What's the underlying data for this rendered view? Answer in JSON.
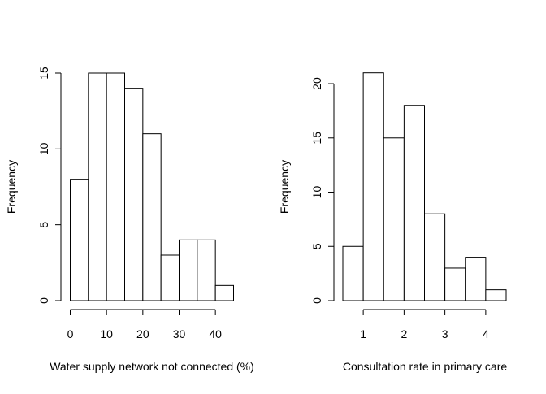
{
  "chart_data": [
    {
      "type": "bar",
      "subtype": "histogram",
      "title": "",
      "xlabel": "Water supply network not connected (%)",
      "ylabel": "Frequency",
      "bins": [
        {
          "start": 0,
          "end": 5,
          "count": 8
        },
        {
          "start": 5,
          "end": 10,
          "count": 15
        },
        {
          "start": 10,
          "end": 15,
          "count": 15
        },
        {
          "start": 15,
          "end": 20,
          "count": 14
        },
        {
          "start": 20,
          "end": 25,
          "count": 11
        },
        {
          "start": 25,
          "end": 30,
          "count": 3
        },
        {
          "start": 30,
          "end": 35,
          "count": 4
        },
        {
          "start": 35,
          "end": 40,
          "count": 4
        },
        {
          "start": 40,
          "end": 45,
          "count": 1
        }
      ],
      "xlim": [
        0,
        45
      ],
      "ylim": [
        0,
        15
      ],
      "xticks": [
        0,
        10,
        20,
        30,
        40
      ],
      "yticks": [
        0,
        5,
        10,
        15
      ],
      "grid": false,
      "legend": "none"
    },
    {
      "type": "bar",
      "subtype": "histogram",
      "title": "",
      "xlabel": "Consultation rate in primary care",
      "ylabel": "Frequency",
      "bins": [
        {
          "start": 0.5,
          "end": 1.0,
          "count": 5
        },
        {
          "start": 1.0,
          "end": 1.5,
          "count": 21
        },
        {
          "start": 1.5,
          "end": 2.0,
          "count": 15
        },
        {
          "start": 2.0,
          "end": 2.5,
          "count": 18
        },
        {
          "start": 2.5,
          "end": 3.0,
          "count": 8
        },
        {
          "start": 3.0,
          "end": 3.5,
          "count": 3
        },
        {
          "start": 3.5,
          "end": 4.0,
          "count": 4
        },
        {
          "start": 4.0,
          "end": 4.5,
          "count": 1
        }
      ],
      "xlim": [
        0.5,
        4.5
      ],
      "ylim": [
        0,
        21
      ],
      "xticks": [
        1,
        2,
        3,
        4
      ],
      "yticks": [
        0,
        5,
        10,
        15,
        20
      ],
      "grid": false,
      "legend": "none"
    }
  ]
}
